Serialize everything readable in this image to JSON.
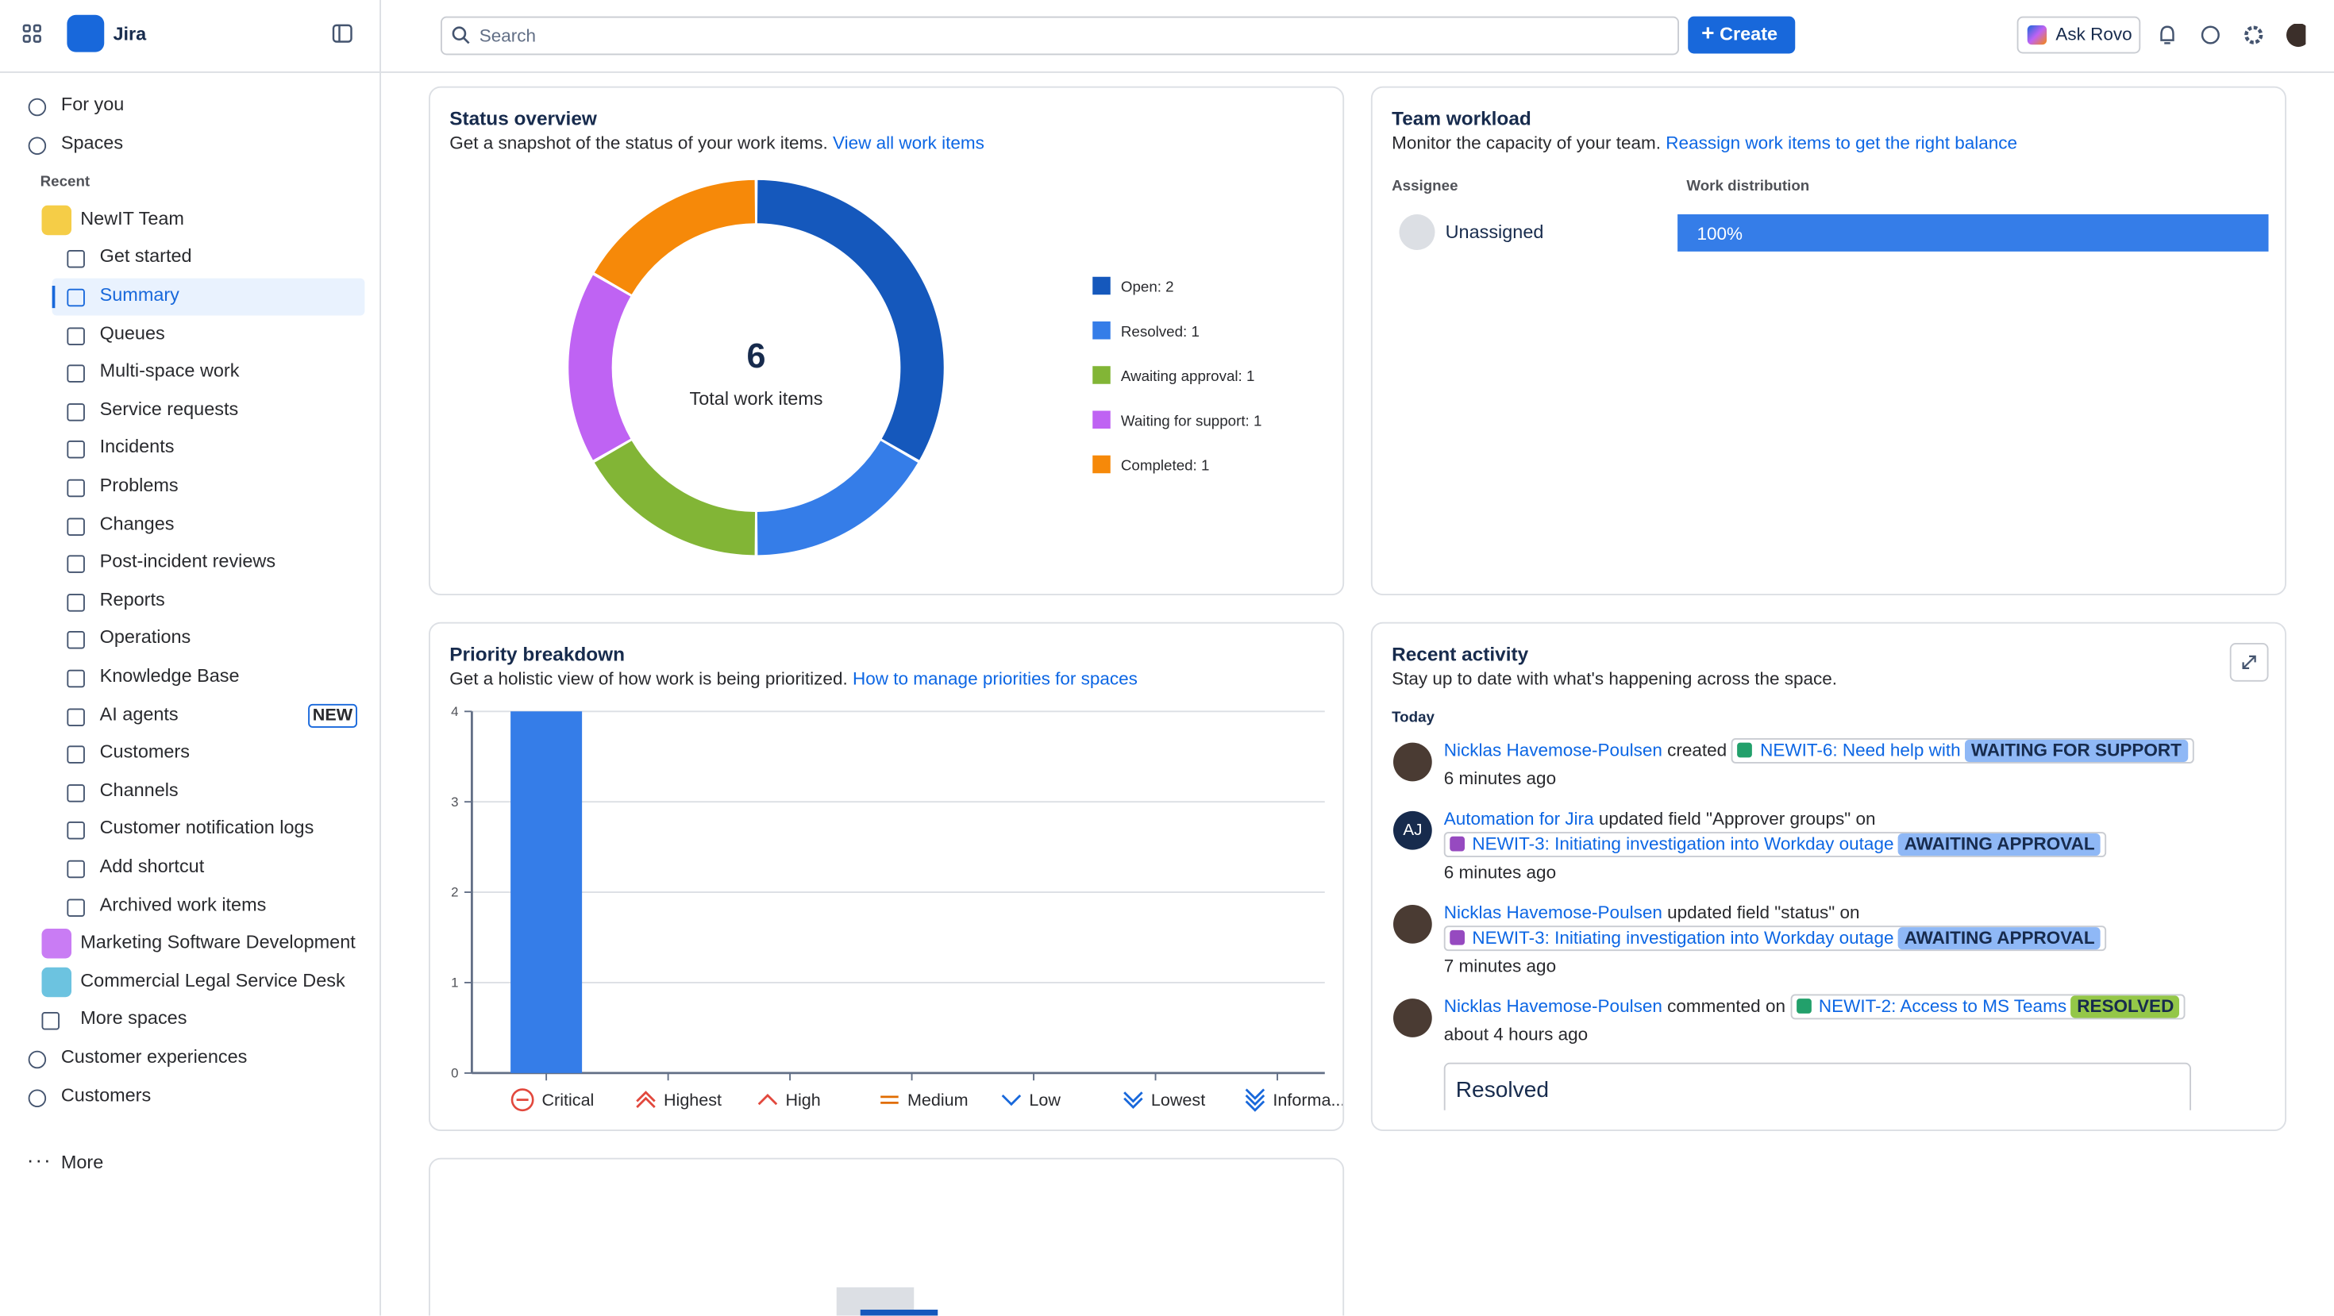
{
  "topbar": {
    "app": "Jira",
    "search": "Search",
    "create": "Create",
    "ask_rovo": "Ask Rovo"
  },
  "sidebar": {
    "items": [
      {
        "label": "For you",
        "level": 0
      },
      {
        "label": "Spaces",
        "level": 0
      },
      {
        "label": "Recent",
        "level": "header"
      },
      {
        "label": "NewIT Team",
        "level": "space",
        "color": "#f5cd47"
      },
      {
        "label": "Get started",
        "level": 1
      },
      {
        "label": "Summary",
        "level": 1,
        "active": true
      },
      {
        "label": "Queues",
        "level": 1
      },
      {
        "label": "Multi-space work",
        "level": 1
      },
      {
        "label": "Service requests",
        "level": 1
      },
      {
        "label": "Incidents",
        "level": 1
      },
      {
        "label": "Problems",
        "level": 1
      },
      {
        "label": "Changes",
        "level": 1
      },
      {
        "label": "Post-incident reviews",
        "level": 1
      },
      {
        "label": "Reports",
        "level": 1
      },
      {
        "label": "Operations",
        "level": 1
      },
      {
        "label": "Knowledge Base",
        "level": 1
      },
      {
        "label": "AI agents",
        "level": 1,
        "badge": "NEW"
      },
      {
        "label": "Customers",
        "level": 1
      },
      {
        "label": "Channels",
        "level": 1
      },
      {
        "label": "Customer notification logs",
        "level": 1
      },
      {
        "label": "Add shortcut",
        "level": 1
      },
      {
        "label": "Archived work items",
        "level": 1
      },
      {
        "label": "Marketing Software Development",
        "level": "space",
        "color": "#c97cf4"
      },
      {
        "label": "Commercial Legal Service Desk",
        "level": "space",
        "color": "#6cc3e0"
      },
      {
        "label": "More spaces",
        "level": "space-more"
      },
      {
        "label": "Customer experiences",
        "level": 0
      },
      {
        "label": "Customers",
        "level": 0
      }
    ],
    "more": "More"
  },
  "status_overview": {
    "title": "Status overview",
    "description": "Get a snapshot of the status of your work items.",
    "link": "View all work items",
    "total": 6,
    "total_label": "Total work items",
    "slices": [
      {
        "label": "Open: 2",
        "value": 2,
        "color": "#1558bc"
      },
      {
        "label": "Resolved: 1",
        "value": 1,
        "color": "#357de8"
      },
      {
        "label": "Awaiting approval: 1",
        "value": 1,
        "color": "#82b536"
      },
      {
        "label": "Waiting for support: 1",
        "value": 1,
        "color": "#bf63f3"
      },
      {
        "label": "Completed: 1",
        "value": 1,
        "color": "#f68909"
      }
    ]
  },
  "team_workload": {
    "title": "Team workload",
    "description": "Monitor the capacity of your team.",
    "link": "Reassign work items to get the right balance",
    "columns": [
      "Assignee",
      "Work distribution"
    ],
    "rows": [
      {
        "name": "Unassigned",
        "value": 100,
        "value_label": "100%"
      }
    ]
  },
  "priority_breakdown": {
    "title": "Priority breakdown",
    "description": "Get a holistic view of how work is being prioritized.",
    "link": "How to manage priorities for spaces",
    "chart": {
      "type": "bar",
      "categories": [
        "Critical",
        "Highest",
        "High",
        "Medium",
        "Low",
        "Lowest",
        "Informa..."
      ],
      "values": [
        4,
        0,
        0,
        0,
        0,
        0,
        0
      ],
      "color": "#357de8",
      "ylim": [
        0,
        4
      ],
      "yticks": [
        0,
        1,
        2,
        3,
        4
      ],
      "grid": true
    }
  },
  "recent_activity": {
    "title": "Recent activity",
    "description": "Stay up to date with what's happening across the space.",
    "day": "Today",
    "entries": [
      {
        "actor": "Nicklas Havemose-Poulsen",
        "action": "created",
        "issue": "NEWIT-6: Need help with",
        "icon_color": "#22a06b",
        "status": "WAITING FOR SUPPORT",
        "status_color": "#8fb8f6",
        "time": "6 minutes ago"
      },
      {
        "actor": "Automation for Jira",
        "avatar": "AJ",
        "action": "updated field \"Approver groups\" on",
        "issue": "NEWIT-3: Initiating investigation into Workday outage",
        "icon_color": "#964ac0",
        "status": "AWAITING APPROVAL",
        "status_color": "#8fb8f6",
        "time": "6 minutes ago"
      },
      {
        "actor": "Nicklas Havemose-Poulsen",
        "action": "updated field \"status\" on",
        "issue": "NEWIT-3: Initiating investigation into Workday outage",
        "icon_color": "#964ac0",
        "status": "AWAITING APPROVAL",
        "status_color": "#8fb8f6",
        "time": "7 minutes ago"
      },
      {
        "actor": "Nicklas Havemose-Poulsen",
        "action": "commented on",
        "issue": "NEWIT-2: Access to MS Teams",
        "icon_color": "#22a06b",
        "status": "RESOLVED",
        "status_color": "#94c748",
        "time": "about 4 hours ago",
        "comment": "Resolved"
      }
    ]
  }
}
